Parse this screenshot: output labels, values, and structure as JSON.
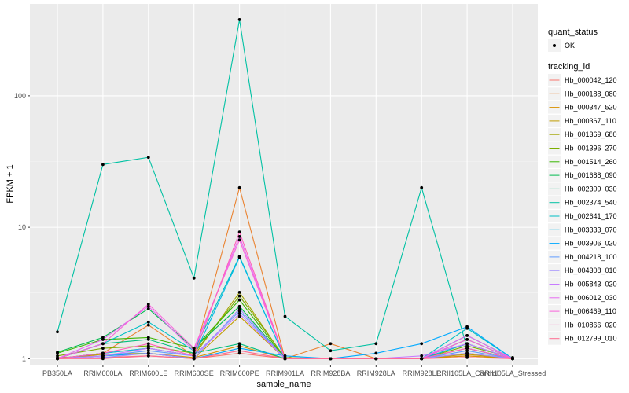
{
  "chart_data": {
    "type": "line",
    "xlabel": "sample_name",
    "ylabel": "FPKM + 1",
    "y_scale": "log10",
    "ylim": [
      0.9,
      500
    ],
    "y_ticks": [
      {
        "value": 1,
        "label": "1"
      },
      {
        "value": 10,
        "label": "10"
      },
      {
        "value": 100,
        "label": "100"
      }
    ],
    "grid": true,
    "legend_position": "right",
    "categories": [
      "PB350LA",
      "RRIM600LA",
      "RRIM600LE",
      "RRIM600SE",
      "RRIM600PE",
      "RRIM901LA",
      "RRIM928BA",
      "RRIM928LA",
      "RRIM928LE",
      "RRII105LA_Control",
      "RRII105LA_Stressed"
    ],
    "shape_legend": {
      "title": "quant_status",
      "items": [
        {
          "label": "OK"
        }
      ]
    },
    "color_legend_title": "tracking_id",
    "series": [
      {
        "name": "Hb_000042_120",
        "color": "#F8766D",
        "values": [
          1.0,
          1.02,
          1.05,
          1.0,
          1.1,
          1.0,
          1.0,
          1.0,
          1.0,
          1.05,
          1.0
        ]
      },
      {
        "name": "Hb_000188_080",
        "color": "#EA8331",
        "values": [
          1.0,
          1.1,
          1.8,
          1.05,
          20.0,
          1.0,
          1.3,
          1.0,
          1.0,
          1.1,
          1.0
        ]
      },
      {
        "name": "Hb_000347_520",
        "color": "#D89000",
        "values": [
          1.02,
          1.05,
          1.1,
          1.02,
          1.25,
          1.0,
          1.0,
          1.0,
          1.0,
          1.05,
          1.0
        ]
      },
      {
        "name": "Hb_000367_110",
        "color": "#C09B00",
        "values": [
          1.0,
          1.08,
          1.1,
          1.0,
          2.1,
          1.0,
          1.0,
          1.0,
          1.0,
          1.08,
          1.0
        ]
      },
      {
        "name": "Hb_001369_680",
        "color": "#A3A500",
        "values": [
          1.0,
          1.1,
          1.2,
          1.05,
          3.2,
          1.0,
          1.0,
          1.0,
          1.0,
          1.2,
          1.0
        ]
      },
      {
        "name": "Hb_001396_270",
        "color": "#7CAE00",
        "values": [
          1.05,
          1.2,
          1.25,
          1.1,
          3.0,
          1.02,
          1.0,
          1.0,
          1.0,
          1.25,
          1.02
        ]
      },
      {
        "name": "Hb_001514_260",
        "color": "#39B600",
        "values": [
          1.1,
          1.4,
          1.45,
          1.2,
          2.8,
          1.0,
          1.0,
          1.0,
          1.0,
          1.3,
          1.0
        ]
      },
      {
        "name": "Hb_001688_090",
        "color": "#00BB4E",
        "values": [
          1.12,
          1.45,
          2.4,
          1.2,
          2.5,
          1.0,
          1.0,
          1.0,
          1.0,
          1.4,
          1.0
        ]
      },
      {
        "name": "Hb_002309_030",
        "color": "#00BF7D",
        "values": [
          1.0,
          1.3,
          1.4,
          1.1,
          1.3,
          1.0,
          1.0,
          1.0,
          1.0,
          1.5,
          1.0
        ]
      },
      {
        "name": "Hb_002374_540",
        "color": "#00C1A3",
        "values": [
          1.6,
          30.0,
          34.0,
          4.1,
          380.0,
          2.1,
          1.15,
          1.3,
          20.0,
          1.2,
          1.0
        ]
      },
      {
        "name": "Hb_002641_170",
        "color": "#00BFC4",
        "values": [
          1.0,
          1.3,
          1.9,
          1.15,
          6.0,
          1.0,
          1.0,
          1.0,
          1.0,
          1.7,
          1.0
        ]
      },
      {
        "name": "Hb_003333_070",
        "color": "#00B8E7",
        "values": [
          1.0,
          1.1,
          1.2,
          1.05,
          5.9,
          1.0,
          1.0,
          1.0,
          1.0,
          1.3,
          1.0
        ]
      },
      {
        "name": "Hb_003906_020",
        "color": "#00A9FF",
        "values": [
          1.0,
          1.05,
          1.1,
          1.0,
          1.2,
          1.05,
          1.0,
          1.1,
          1.3,
          1.75,
          1.0
        ]
      },
      {
        "name": "Hb_004218_100",
        "color": "#619CFF",
        "values": [
          1.0,
          1.05,
          1.15,
          1.05,
          2.3,
          1.0,
          1.0,
          1.0,
          1.0,
          1.15,
          1.0
        ]
      },
      {
        "name": "Hb_004308_010",
        "color": "#9F8CFF",
        "values": [
          1.0,
          1.02,
          1.1,
          1.0,
          2.4,
          1.0,
          1.0,
          1.0,
          1.0,
          1.1,
          1.0
        ]
      },
      {
        "name": "Hb_005843_020",
        "color": "#C77CFF",
        "values": [
          1.0,
          1.05,
          1.2,
          1.05,
          2.2,
          1.0,
          1.0,
          1.0,
          1.05,
          1.3,
          1.0
        ]
      },
      {
        "name": "Hb_006012_030",
        "color": "#E76BF3",
        "values": [
          1.0,
          1.4,
          2.5,
          1.15,
          8.5,
          1.0,
          1.0,
          1.0,
          1.0,
          1.5,
          1.0
        ]
      },
      {
        "name": "Hb_006469_110",
        "color": "#FA62DB",
        "values": [
          1.0,
          1.3,
          2.6,
          1.2,
          8.0,
          1.0,
          1.0,
          1.0,
          1.0,
          1.4,
          1.0
        ]
      },
      {
        "name": "Hb_010866_020",
        "color": "#FF62BC",
        "values": [
          1.0,
          1.1,
          1.3,
          1.05,
          9.2,
          1.0,
          1.0,
          1.0,
          1.0,
          1.2,
          1.0
        ]
      },
      {
        "name": "Hb_012799_010",
        "color": "#FF6C91",
        "values": [
          1.0,
          1.0,
          1.05,
          1.0,
          1.15,
          1.0,
          1.0,
          1.0,
          1.0,
          1.02,
          1.0
        ]
      }
    ]
  }
}
